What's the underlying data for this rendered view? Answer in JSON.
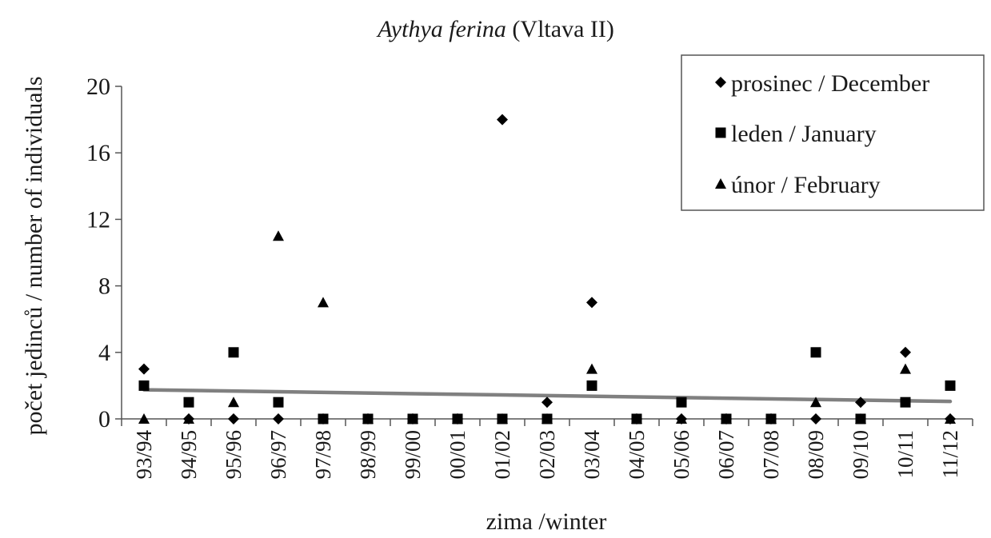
{
  "chart_data": {
    "type": "scatter",
    "title_italic": "Aythya ferina",
    "title_rest": " (Vltava II)",
    "xlabel": "zima /winter",
    "ylabel": "počet jedinců / number of individuals",
    "ylim": [
      0,
      20
    ],
    "yticks": [
      "0",
      "4",
      "8",
      "12",
      "16",
      "20"
    ],
    "grid": false,
    "legend_position": "top-right",
    "categories": [
      "93/94",
      "94/95",
      "95/96",
      "96/97",
      "97/98",
      "98/99",
      "99/00",
      "00/01",
      "01/02",
      "02/03",
      "03/04",
      "04/05",
      "05/06",
      "06/07",
      "07/08",
      "08/09",
      "09/10",
      "10/11",
      "11/12"
    ],
    "series": [
      {
        "name": "prosinec / December",
        "marker": "diamond",
        "values": [
          3,
          0,
          0,
          0,
          0,
          0,
          0,
          0,
          18,
          1,
          7,
          0,
          0,
          0,
          0,
          0,
          1,
          4,
          0
        ]
      },
      {
        "name": "leden / January",
        "marker": "square",
        "values": [
          2,
          1,
          4,
          1,
          0,
          0,
          0,
          0,
          0,
          0,
          2,
          0,
          1,
          0,
          0,
          4,
          0,
          1,
          2
        ]
      },
      {
        "name": "únor / February",
        "marker": "triangle",
        "values": [
          0,
          0,
          1,
          11,
          7,
          0,
          0,
          0,
          0,
          0,
          3,
          0,
          0,
          0,
          0,
          1,
          0,
          3,
          0
        ]
      }
    ],
    "trendline": {
      "start": 1.75,
      "end": 1.05,
      "color": "#808080"
    },
    "marker_color": "#000000"
  }
}
